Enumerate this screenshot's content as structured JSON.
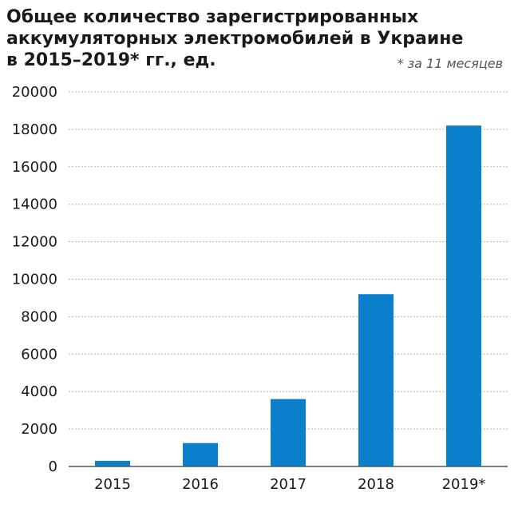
{
  "chart_data": {
    "type": "bar",
    "title_lines": [
      "Общее количество зарегистрированных",
      "аккумуляторных электромобилей в Украине",
      "в 2015–2019* гг., ед."
    ],
    "note": "* за 11 месяцев",
    "categories": [
      "2015",
      "2016",
      "2017",
      "2018",
      "2019*"
    ],
    "values": [
      300,
      1250,
      3600,
      9200,
      18200
    ],
    "ylim": [
      0,
      20000
    ],
    "yticks": [
      0,
      2000,
      4000,
      6000,
      8000,
      10000,
      12000,
      14000,
      16000,
      18000,
      20000
    ],
    "grid": true,
    "bar_color": "#0a7fcb",
    "grid_color": "#b5b5b5",
    "axis_color": "#555555"
  }
}
